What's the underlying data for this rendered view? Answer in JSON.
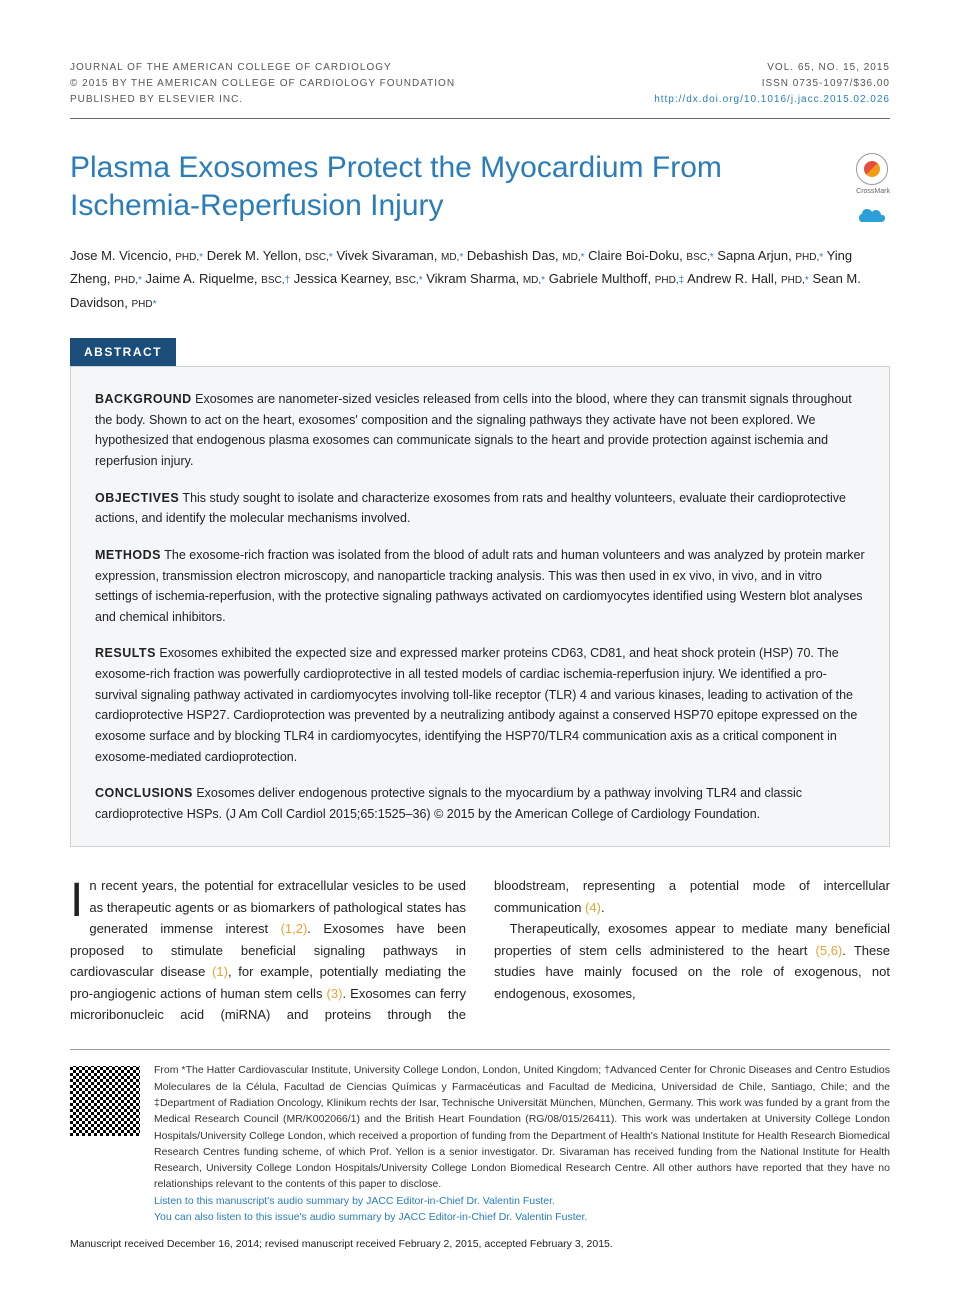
{
  "header": {
    "journal_line": "JOURNAL OF THE AMERICAN COLLEGE OF CARDIOLOGY",
    "copyright_line": "© 2015 BY THE AMERICAN COLLEGE OF CARDIOLOGY FOUNDATION",
    "publisher_line": "PUBLISHED BY ELSEVIER INC.",
    "vol_issue": "VOL. 65, NO. 15, 2015",
    "issn": "ISSN 0735-1097/$36.00",
    "doi": "http://dx.doi.org/10.1016/j.jacc.2015.02.026"
  },
  "title": "Plasma Exosomes Protect the Myocardium From Ischemia-Reperfusion Injury",
  "crossmark_label": "CrossMark",
  "authors": [
    {
      "name": "Jose M. Vicencio,",
      "degree": "PHD,",
      "affil": "*"
    },
    {
      "name": "Derek M. Yellon,",
      "degree": "DSC,",
      "affil": "*"
    },
    {
      "name": "Vivek Sivaraman,",
      "degree": "MD,",
      "affil": "*"
    },
    {
      "name": "Debashish Das,",
      "degree": "MD,",
      "affil": "*"
    },
    {
      "name": "Claire Boi-Doku,",
      "degree": "BSC,",
      "affil": "*"
    },
    {
      "name": "Sapna Arjun,",
      "degree": "PHD,",
      "affil": "*"
    },
    {
      "name": "Ying Zheng,",
      "degree": "PHD,",
      "affil": "*"
    },
    {
      "name": "Jaime A. Riquelme,",
      "degree": "BSC,",
      "affil": "†"
    },
    {
      "name": "Jessica Kearney,",
      "degree": "BSC,",
      "affil": "*"
    },
    {
      "name": "Vikram Sharma,",
      "degree": "MD,",
      "affil": "*"
    },
    {
      "name": "Gabriele Multhoff,",
      "degree": "PHD,",
      "affil": "‡"
    },
    {
      "name": "Andrew R. Hall,",
      "degree": "PHD,",
      "affil": "*"
    },
    {
      "name": "Sean M. Davidson,",
      "degree": "PHD",
      "affil": "*"
    }
  ],
  "abstract": {
    "label": "ABSTRACT",
    "sections": [
      {
        "label": "BACKGROUND",
        "text": "Exosomes are nanometer-sized vesicles released from cells into the blood, where they can transmit signals throughout the body. Shown to act on the heart, exosomes' composition and the signaling pathways they activate have not been explored. We hypothesized that endogenous plasma exosomes can communicate signals to the heart and provide protection against ischemia and reperfusion injury."
      },
      {
        "label": "OBJECTIVES",
        "text": "This study sought to isolate and characterize exosomes from rats and healthy volunteers, evaluate their cardioprotective actions, and identify the molecular mechanisms involved."
      },
      {
        "label": "METHODS",
        "text": "The exosome-rich fraction was isolated from the blood of adult rats and human volunteers and was analyzed by protein marker expression, transmission electron microscopy, and nanoparticle tracking analysis. This was then used in ex vivo, in vivo, and in vitro settings of ischemia-reperfusion, with the protective signaling pathways activated on cardiomyocytes identified using Western blot analyses and chemical inhibitors."
      },
      {
        "label": "RESULTS",
        "text": "Exosomes exhibited the expected size and expressed marker proteins CD63, CD81, and heat shock protein (HSP) 70. The exosome-rich fraction was powerfully cardioprotective in all tested models of cardiac ischemia-reperfusion injury. We identified a pro-survival signaling pathway activated in cardiomyocytes involving toll-like receptor (TLR) 4 and various kinases, leading to activation of the cardioprotective HSP27. Cardioprotection was prevented by a neutralizing antibody against a conserved HSP70 epitope expressed on the exosome surface and by blocking TLR4 in cardiomyocytes, identifying the HSP70/TLR4 communication axis as a critical component in exosome-mediated cardioprotection."
      },
      {
        "label": "CONCLUSIONS",
        "text": "Exosomes deliver endogenous protective signals to the myocardium by a pathway involving TLR4 and classic cardioprotective HSPs. (J Am Coll Cardiol 2015;65:1525–36) © 2015 by the American College of Cardiology Foundation."
      }
    ]
  },
  "body": {
    "dropcap": "I",
    "para1a": "n recent years, the potential for extracellular vesicles to be used as therapeutic agents or as biomarkers of pathological states has generated immense interest ",
    "ref1": "(1,2)",
    "para1b": ". Exosomes have been proposed to stimulate beneficial signaling pathways in cardiovascular disease ",
    "ref2": "(1)",
    "para1c": ", for example, potentially mediating the pro-angiogenic actions of human stem cells ",
    "ref3": "(3)",
    "para1d": ". Exosomes can ferry microribonucleic acid (miRNA) and proteins through the bloodstream, representing a potential mode of intercellular communication ",
    "ref4": "(4)",
    "para1e": ".",
    "para2a": "Therapeutically, exosomes appear to mediate many beneficial properties of stem cells administered to the heart ",
    "ref5": "(5,6)",
    "para2b": ". These studies have mainly focused on the role of exogenous, not endogenous, exosomes,"
  },
  "footer": {
    "affiliations": "From *The Hatter Cardiovascular Institute, University College London, London, United Kingdom; †Advanced Center for Chronic Diseases and Centro Estudios Moleculares de la Célula, Facultad de Ciencias Químicas y Farmacéuticas and Facultad de Medicina, Universidad de Chile, Santiago, Chile; and the ‡Department of Radiation Oncology, Klinikum rechts der Isar, Technische Universität München, München, Germany. This work was funded by a grant from the Medical Research Council (MR/K002066/1) and the British Heart Foundation (RG/08/015/26411). This work was undertaken at University College London Hospitals/University College London, which received a proportion of funding from the Department of Health's National Institute for Health Research Biomedical Research Centres funding scheme, of which Prof. Yellon is a senior investigator. Dr. Sivaraman has received funding from the National Institute for Health Research, University College London Hospitals/University College London Biomedical Research Centre. All other authors have reported that they have no relationships relevant to the contents of this paper to disclose.",
    "listen1": "Listen to this manuscript's audio summary by JACC Editor-in-Chief Dr. Valentin Fuster.",
    "listen2": "You can also listen to this issue's audio summary by JACC Editor-in-Chief Dr. Valentin Fuster.",
    "manuscript": "Manuscript received December 16, 2014; revised manuscript received February 2, 2015, accepted February 3, 2015."
  }
}
